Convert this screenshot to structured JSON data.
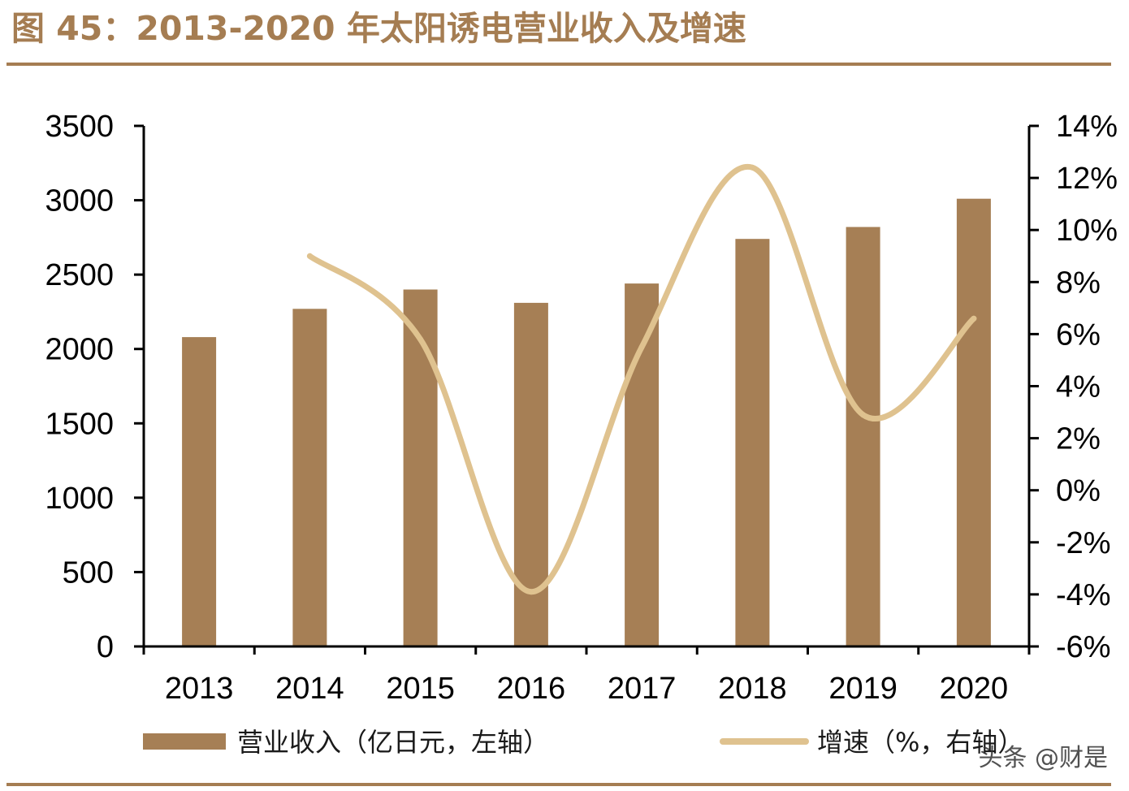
{
  "title": "图 45：2013-2020 年太阳诱电营业收入及增速",
  "watermark": "头条 @财是",
  "colors": {
    "title": "#a57d52",
    "rule": "#a57d52",
    "bar": "#a67f55",
    "line": "#dfc28f",
    "axis": "#000000"
  },
  "chart_data": {
    "type": "bar",
    "categories": [
      "2013",
      "2014",
      "2015",
      "2016",
      "2017",
      "2018",
      "2019",
      "2020"
    ],
    "series": [
      {
        "name": "营业收入（亿日元，左轴）",
        "type": "bar",
        "axis": "left",
        "values": [
          2080,
          2270,
          2400,
          2310,
          2440,
          2740,
          2820,
          3010
        ]
      },
      {
        "name": "增速（%，右轴）",
        "type": "line",
        "axis": "right",
        "values": [
          null,
          9.0,
          5.8,
          -3.9,
          5.5,
          12.4,
          2.9,
          6.6
        ]
      }
    ],
    "y_left": {
      "lim": [
        0,
        3500
      ],
      "ticks": [
        "0",
        "500",
        "1000",
        "1500",
        "2000",
        "2500",
        "3000",
        "3500"
      ]
    },
    "y_right": {
      "lim": [
        -6,
        14
      ],
      "ticks": [
        "-6%",
        "-4%",
        "-2%",
        "0%",
        "2%",
        "4%",
        "6%",
        "8%",
        "10%",
        "12%",
        "14%"
      ]
    },
    "legend_position": "bottom",
    "grid": false
  }
}
